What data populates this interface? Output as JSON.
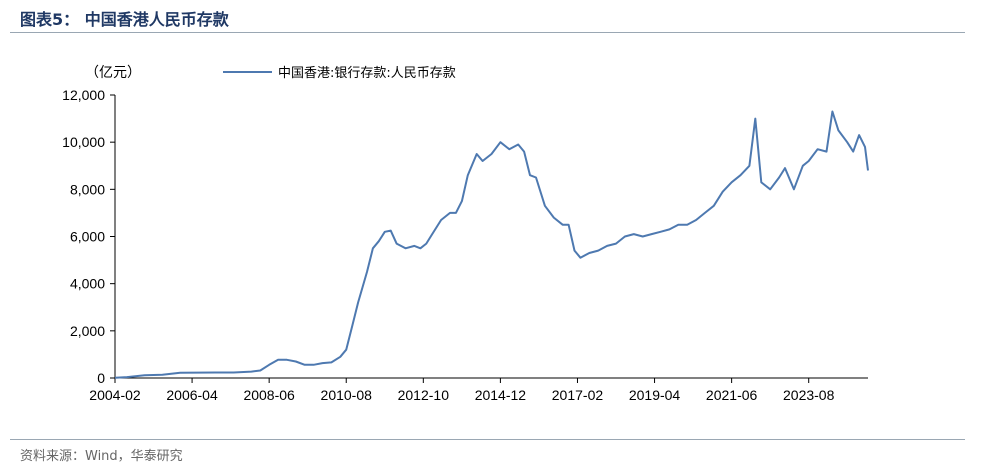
{
  "figure_title": "图表5：  中国香港人民币存款",
  "source": "资料来源：Wind，华泰研究",
  "chart_data": {
    "type": "line",
    "title": "",
    "unit_label": "（亿元）",
    "xlabel": "",
    "ylabel": "",
    "ylim": [
      0,
      12000
    ],
    "y_ticks": [
      "0",
      "2,000",
      "4,000",
      "6,000",
      "8,000",
      "10,000",
      "12,000"
    ],
    "x_tick_labels": [
      "2004-02",
      "2006-04",
      "2008-06",
      "2010-08",
      "2012-10",
      "2014-12",
      "2017-02",
      "2019-04",
      "2021-06",
      "2023-08"
    ],
    "x_range": [
      "2004-02",
      "2025-04"
    ],
    "grid": false,
    "legend_position": "top-center",
    "series": [
      {
        "name": "中国香港:银行存款:人民币存款",
        "color": "#4e79b0",
        "points": [
          [
            "2004-02",
            10
          ],
          [
            "2004-06",
            40
          ],
          [
            "2004-12",
            120
          ],
          [
            "2005-06",
            140
          ],
          [
            "2005-12",
            225
          ],
          [
            "2006-06",
            230
          ],
          [
            "2006-12",
            235
          ],
          [
            "2007-06",
            235
          ],
          [
            "2007-12",
            270
          ],
          [
            "2008-03",
            320
          ],
          [
            "2008-06",
            560
          ],
          [
            "2008-09",
            770
          ],
          [
            "2008-12",
            770
          ],
          [
            "2009-03",
            700
          ],
          [
            "2009-06",
            560
          ],
          [
            "2009-09",
            560
          ],
          [
            "2009-12",
            630
          ],
          [
            "2010-03",
            660
          ],
          [
            "2010-06",
            900
          ],
          [
            "2010-08",
            1200
          ],
          [
            "2010-10",
            2200
          ],
          [
            "2010-12",
            3200
          ],
          [
            "2011-03",
            4500
          ],
          [
            "2011-05",
            5500
          ],
          [
            "2011-07",
            5800
          ],
          [
            "2011-09",
            6200
          ],
          [
            "2011-11",
            6250
          ],
          [
            "2012-01",
            5700
          ],
          [
            "2012-04",
            5500
          ],
          [
            "2012-07",
            5600
          ],
          [
            "2012-09",
            5500
          ],
          [
            "2012-11",
            5700
          ],
          [
            "2013-01",
            6100
          ],
          [
            "2013-04",
            6700
          ],
          [
            "2013-07",
            7000
          ],
          [
            "2013-09",
            7000
          ],
          [
            "2013-11",
            7500
          ],
          [
            "2014-01",
            8600
          ],
          [
            "2014-04",
            9500
          ],
          [
            "2014-06",
            9200
          ],
          [
            "2014-09",
            9500
          ],
          [
            "2014-12",
            10000
          ],
          [
            "2015-03",
            9700
          ],
          [
            "2015-06",
            9900
          ],
          [
            "2015-08",
            9600
          ],
          [
            "2015-10",
            8600
          ],
          [
            "2015-12",
            8500
          ],
          [
            "2016-03",
            7300
          ],
          [
            "2016-06",
            6800
          ],
          [
            "2016-09",
            6500
          ],
          [
            "2016-11",
            6500
          ],
          [
            "2017-01",
            5400
          ],
          [
            "2017-03",
            5100
          ],
          [
            "2017-06",
            5300
          ],
          [
            "2017-09",
            5400
          ],
          [
            "2017-12",
            5600
          ],
          [
            "2018-03",
            5700
          ],
          [
            "2018-06",
            6000
          ],
          [
            "2018-09",
            6100
          ],
          [
            "2018-12",
            6000
          ],
          [
            "2019-03",
            6100
          ],
          [
            "2019-06",
            6200
          ],
          [
            "2019-09",
            6300
          ],
          [
            "2019-12",
            6500
          ],
          [
            "2020-03",
            6500
          ],
          [
            "2020-06",
            6700
          ],
          [
            "2020-09",
            7000
          ],
          [
            "2020-12",
            7300
          ],
          [
            "2021-03",
            7900
          ],
          [
            "2021-06",
            8300
          ],
          [
            "2021-09",
            8600
          ],
          [
            "2021-12",
            9000
          ],
          [
            "2022-02",
            11000
          ],
          [
            "2022-04",
            8300
          ],
          [
            "2022-07",
            8000
          ],
          [
            "2022-10",
            8500
          ],
          [
            "2022-12",
            8900
          ],
          [
            "2023-03",
            8000
          ],
          [
            "2023-06",
            9000
          ],
          [
            "2023-08",
            9200
          ],
          [
            "2023-11",
            9700
          ],
          [
            "2024-02",
            9600
          ],
          [
            "2024-04",
            11300
          ],
          [
            "2024-06",
            10500
          ],
          [
            "2024-09",
            10000
          ],
          [
            "2024-11",
            9600
          ],
          [
            "2025-01",
            10300
          ],
          [
            "2025-03",
            9800
          ],
          [
            "2025-04",
            8800
          ]
        ]
      }
    ]
  }
}
